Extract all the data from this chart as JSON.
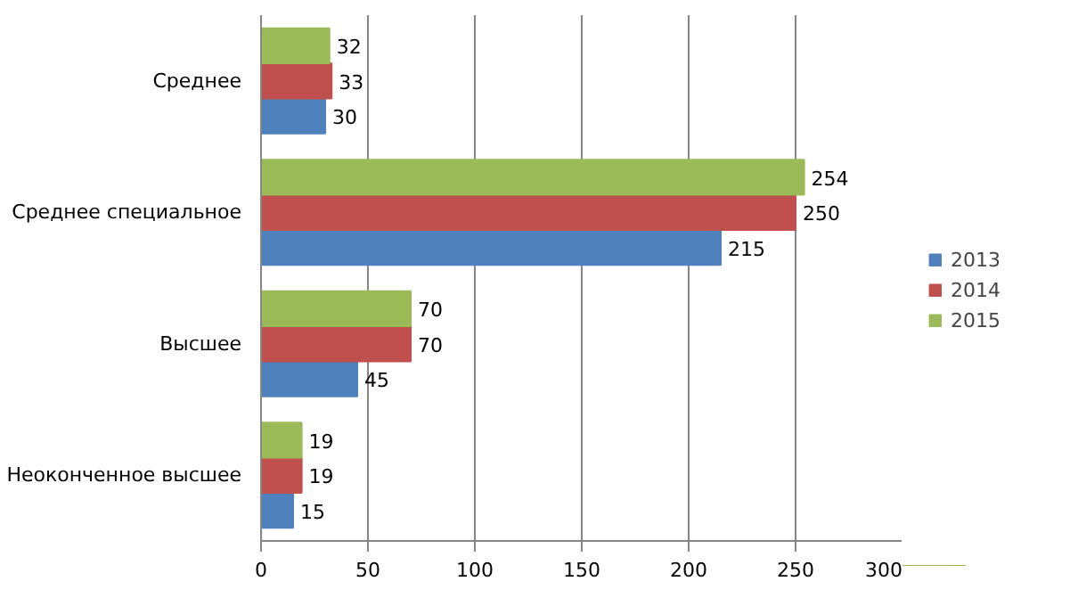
{
  "chart_data": {
    "type": "bar",
    "orientation": "horizontal",
    "categories": [
      "Среднее",
      "Среднее специальное",
      "Высшее",
      "Неоконченное высшее"
    ],
    "series": [
      {
        "name": "2013",
        "color": "#4f81bd",
        "values": [
          30,
          215,
          45,
          15
        ]
      },
      {
        "name": "2014",
        "color": "#c0504d",
        "values": [
          33,
          250,
          70,
          19
        ]
      },
      {
        "name": "2015",
        "color": "#9bbb59",
        "values": [
          32,
          254,
          70,
          19
        ]
      }
    ],
    "xlim": [
      0,
      300
    ],
    "xticks": [
      0,
      50,
      100,
      150,
      200,
      250,
      300
    ],
    "grid": "x",
    "legend": "right",
    "data_labels": true
  }
}
